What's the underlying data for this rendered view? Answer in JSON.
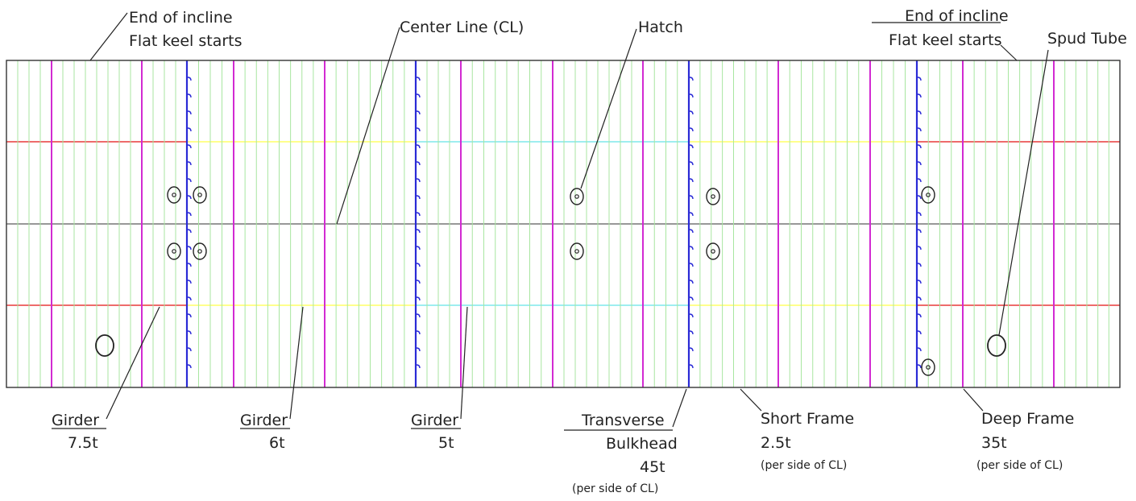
{
  "colors": {
    "frame": "#333333",
    "short_frame": "#a8e6a0",
    "deep_frame": "#d22ad2",
    "bulkhead": "#2a2ad6",
    "girder_outer": "#e83a3a",
    "girder_mid": "#ffff66",
    "girder_center": "#7fe8ec",
    "center_line": "#777777",
    "hatch": "#222222"
  },
  "labels": {
    "incline_left": {
      "line1": "End of incline",
      "line2": "Flat keel starts"
    },
    "center_line": "Center Line (CL)",
    "hatch": "Hatch",
    "incline_right": {
      "line1": "End of incline",
      "line2": "Flat keel starts"
    },
    "spud_tube": "Spud Tube",
    "girder_1": {
      "name": "Girder",
      "weight": "7.5t"
    },
    "girder_2": {
      "name": "Girder",
      "weight": "6t"
    },
    "girder_3": {
      "name": "Girder",
      "weight": "5t"
    },
    "bulkhead": {
      "line1": "Transverse",
      "line2": "Bulkhead",
      "weight": "45t",
      "note": "(per side of CL)"
    },
    "short_frame": {
      "name": "Short Frame",
      "weight": "2.5t",
      "note": "(per side of CL)"
    },
    "deep_frame": {
      "name": "Deep Frame",
      "weight": "35t",
      "note": "(per side of CL)"
    }
  }
}
